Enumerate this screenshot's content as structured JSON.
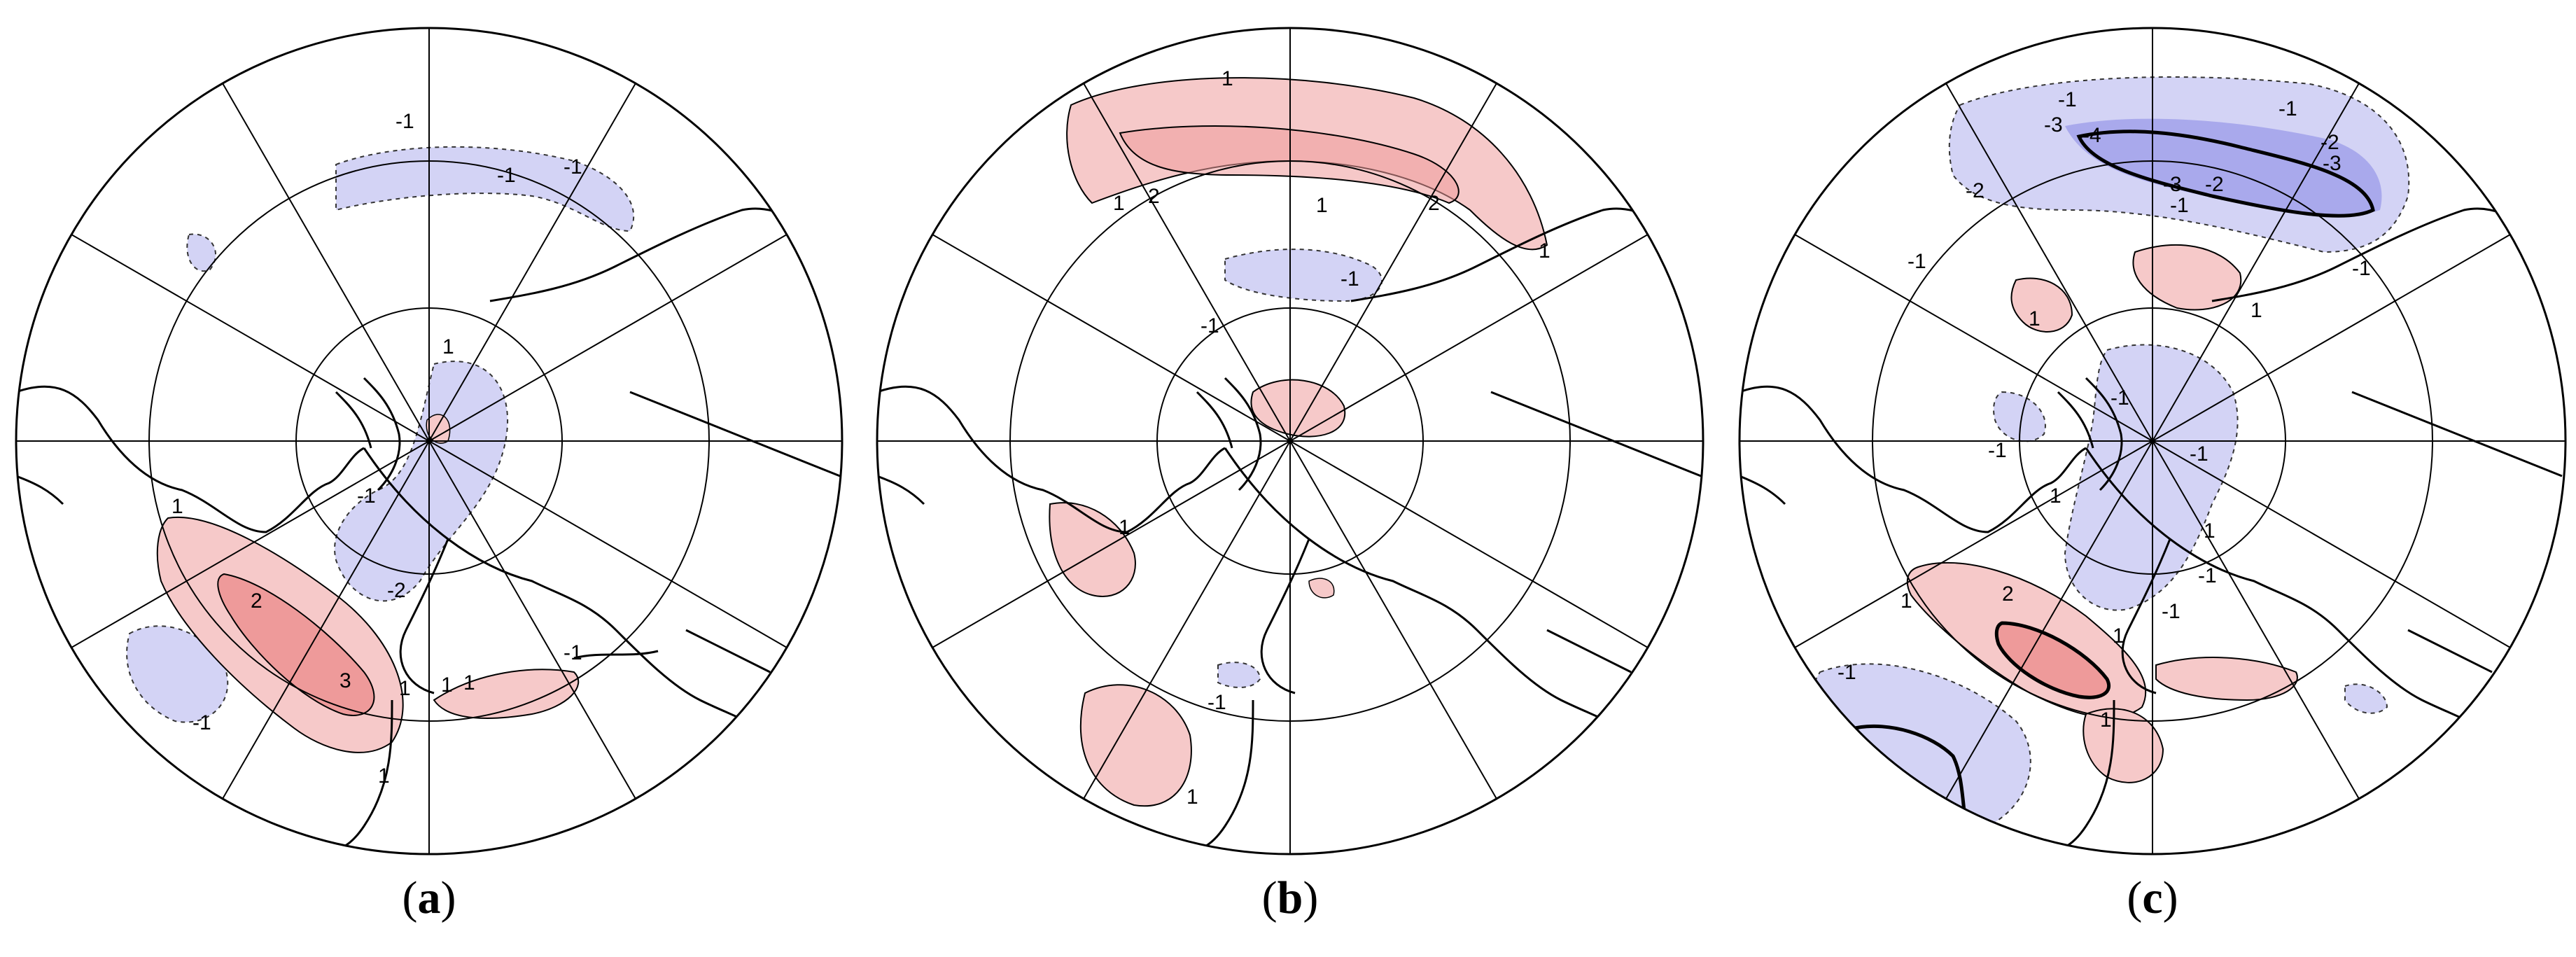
{
  "figure": {
    "panels": [
      {
        "id": "a",
        "caption_open": "(",
        "caption_letter": "a",
        "caption_close": ")",
        "labels": [
          "1",
          "1",
          "2",
          "3",
          "1",
          "1",
          "-1",
          "-1",
          "-1",
          "-1",
          "-1",
          "-2",
          "1",
          "-1",
          "1"
        ]
      },
      {
        "id": "b",
        "caption_open": "(",
        "caption_letter": "b",
        "caption_close": ")",
        "labels": [
          "1",
          "1",
          "2",
          "1",
          "2",
          "1",
          "-1",
          "-1",
          "1",
          "-1",
          "1"
        ]
      },
      {
        "id": "c",
        "caption_open": "(",
        "caption_letter": "c",
        "caption_close": ")",
        "labels": [
          "-1",
          "-3",
          "-4",
          "-1",
          "-2",
          "-3",
          "-2",
          "-3",
          "-1",
          "-2",
          "-1",
          "-1",
          "1",
          "1",
          "-1",
          "-1",
          "-1",
          "1",
          "1",
          "-1",
          "1",
          "2",
          "-1",
          "1",
          "-1",
          "1"
        ]
      }
    ],
    "colors": {
      "positive_fill": "#f6c9c9",
      "positive_strong": "#ee9a9a",
      "negative_fill": "#d3d3f5",
      "negative_strong": "#a9a9ec",
      "line": "#000000"
    }
  }
}
